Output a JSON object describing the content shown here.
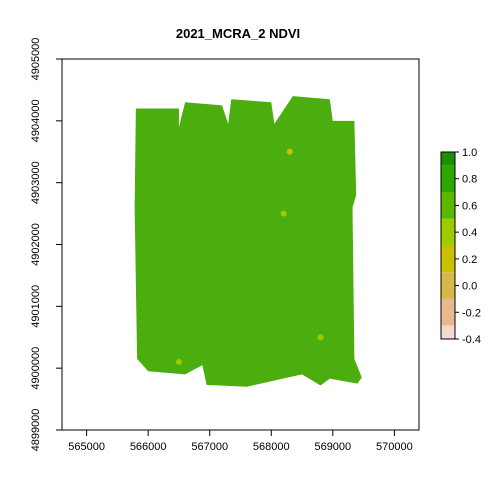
{
  "chart_data": {
    "type": "heatmap",
    "title": "2021_MCRA_2 NDVI",
    "xlabel": "",
    "ylabel": "",
    "xlim": [
      564600,
      570400
    ],
    "ylim": [
      4899000,
      4905000
    ],
    "x_ticks": [
      565000,
      566000,
      567000,
      568000,
      569000,
      570000
    ],
    "x_tick_labels": [
      "565000",
      "566000",
      "567000",
      "568000",
      "569000",
      "570000"
    ],
    "y_ticks": [
      4899000,
      4900000,
      4901000,
      4902000,
      4903000,
      4904000,
      4905000
    ],
    "y_tick_labels": [
      "4899000",
      "4900000",
      "4901000",
      "4902000",
      "4903000",
      "4904000",
      "4905000"
    ],
    "grid": false,
    "legend": {
      "placement": "right",
      "min": -0.4,
      "max": 1.0,
      "ticks": [
        -0.4,
        -0.2,
        0.0,
        0.2,
        0.4,
        0.6,
        0.8,
        1.0
      ],
      "tick_labels": [
        "-0.4",
        "-0.2",
        "0.0",
        "0.2",
        "0.4",
        "0.6",
        "0.8",
        "1.0"
      ],
      "colors": [
        "#f2d8d0",
        "#e8b88f",
        "#d8b84a",
        "#c8c000",
        "#9ccc00",
        "#5cb800",
        "#2ea800",
        "#1e9000"
      ]
    },
    "raster_fill_color": "#4cae0e",
    "raster_extent_polygon": [
      [
        565800,
        4904200
      ],
      [
        566500,
        4904200
      ],
      [
        566500,
        4903900
      ],
      [
        566600,
        4904300
      ],
      [
        567200,
        4904250
      ],
      [
        567300,
        4903950
      ],
      [
        567350,
        4904350
      ],
      [
        568000,
        4904300
      ],
      [
        568050,
        4903950
      ],
      [
        568350,
        4904400
      ],
      [
        568950,
        4904350
      ],
      [
        569000,
        4904000
      ],
      [
        569350,
        4904000
      ],
      [
        569380,
        4902800
      ],
      [
        569320,
        4902600
      ],
      [
        569350,
        4900150
      ],
      [
        569470,
        4899850
      ],
      [
        569400,
        4899750
      ],
      [
        568950,
        4899830
      ],
      [
        568800,
        4899720
      ],
      [
        568500,
        4899900
      ],
      [
        567600,
        4899700
      ],
      [
        566950,
        4899730
      ],
      [
        566880,
        4900050
      ],
      [
        566600,
        4899900
      ],
      [
        566000,
        4899950
      ],
      [
        565820,
        4900150
      ],
      [
        565780,
        4902600
      ]
    ],
    "anomaly_patches": [
      {
        "x": 568300,
        "y": 4903500,
        "ndvi": 0.1
      },
      {
        "x": 566500,
        "y": 4900100,
        "ndvi": 0.3
      },
      {
        "x": 568800,
        "y": 4900500,
        "ndvi": 0.35
      },
      {
        "x": 568200,
        "y": 4902500,
        "ndvi": 0.4
      }
    ]
  }
}
